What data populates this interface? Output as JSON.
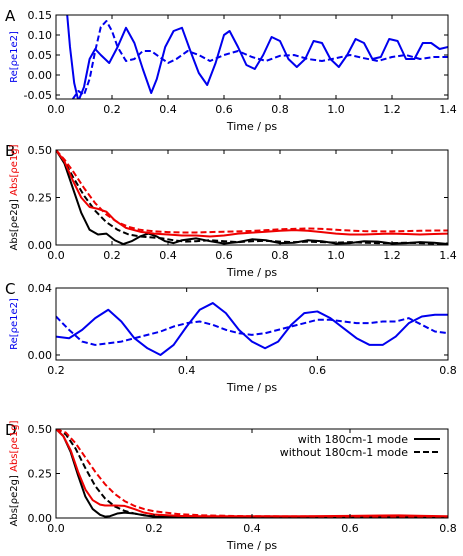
{
  "colors": {
    "blue": "#0000ee",
    "red": "#ee0000",
    "black": "#000000"
  },
  "chart_data": [
    {
      "type": "line",
      "panel_label": "A",
      "xlabel": "Time / ps",
      "ylabel": "Re[ρe1e2]",
      "ylabel_color": "blue",
      "xlim": [
        0,
        1.4
      ],
      "ylim": [
        -0.06,
        0.15
      ],
      "xticks": [
        0.0,
        0.2,
        0.4,
        0.6,
        0.8,
        1.0,
        1.2,
        1.4
      ],
      "xtick_labels": [
        "0.0",
        "0.2",
        "0.4",
        "0.6",
        "0.8",
        "1.0",
        "1.2",
        "1.4"
      ],
      "yticks": [
        -0.05,
        0.0,
        0.05,
        0.1,
        0.15
      ],
      "ytick_labels": [
        "-0.05",
        "0.00",
        "0.05",
        "0.10",
        "0.15"
      ],
      "series": [
        {
          "style": "solid",
          "color": "blue",
          "x": [
            0.04,
            0.05,
            0.065,
            0.08,
            0.1,
            0.12,
            0.14,
            0.16,
            0.19,
            0.22,
            0.25,
            0.28,
            0.31,
            0.34,
            0.36,
            0.39,
            0.42,
            0.45,
            0.48,
            0.51,
            0.54,
            0.57,
            0.6,
            0.62,
            0.65,
            0.68,
            0.71,
            0.74,
            0.77,
            0.8,
            0.83,
            0.86,
            0.89,
            0.92,
            0.95,
            0.98,
            1.01,
            1.04,
            1.07,
            1.1,
            1.13,
            1.16,
            1.19,
            1.22,
            1.25,
            1.28,
            1.31,
            1.34,
            1.37,
            1.4
          ],
          "y": [
            0.15,
            0.07,
            -0.02,
            -0.065,
            -0.03,
            0.04,
            0.065,
            0.05,
            0.03,
            0.07,
            0.118,
            0.08,
            0.015,
            -0.045,
            -0.01,
            0.07,
            0.11,
            0.118,
            0.06,
            0.005,
            -0.025,
            0.03,
            0.1,
            0.11,
            0.07,
            0.025,
            0.015,
            0.05,
            0.095,
            0.085,
            0.04,
            0.02,
            0.04,
            0.085,
            0.08,
            0.04,
            0.02,
            0.05,
            0.09,
            0.08,
            0.04,
            0.045,
            0.09,
            0.085,
            0.04,
            0.04,
            0.08,
            0.08,
            0.065,
            0.07
          ]
        },
        {
          "style": "dashed",
          "color": "blue",
          "x": [
            0.06,
            0.08,
            0.1,
            0.12,
            0.14,
            0.16,
            0.18,
            0.2,
            0.22,
            0.25,
            0.28,
            0.31,
            0.34,
            0.37,
            0.4,
            0.43,
            0.47,
            0.51,
            0.55,
            0.6,
            0.65,
            0.7,
            0.75,
            0.8,
            0.85,
            0.9,
            0.95,
            1.0,
            1.05,
            1.1,
            1.15,
            1.2,
            1.25,
            1.3,
            1.35,
            1.4
          ],
          "y": [
            -0.06,
            -0.04,
            -0.05,
            -0.01,
            0.06,
            0.12,
            0.135,
            0.11,
            0.07,
            0.035,
            0.04,
            0.06,
            0.06,
            0.045,
            0.03,
            0.04,
            0.06,
            0.05,
            0.035,
            0.05,
            0.06,
            0.045,
            0.035,
            0.048,
            0.05,
            0.04,
            0.035,
            0.042,
            0.05,
            0.042,
            0.035,
            0.045,
            0.05,
            0.04,
            0.045,
            0.045
          ]
        }
      ]
    },
    {
      "type": "line",
      "panel_label": "B",
      "xlabel": "Time / ps",
      "ylabel_parts": [
        {
          "text": "Abs[ρe2g]",
          "color": "black"
        },
        {
          "text": "Abs[ρe1g]",
          "color": "red"
        }
      ],
      "xlim": [
        0,
        1.4
      ],
      "ylim": [
        0,
        0.5
      ],
      "xticks": [
        0.0,
        0.2,
        0.4,
        0.6,
        0.8,
        1.0,
        1.2,
        1.4
      ],
      "xtick_labels": [
        "0.0",
        "0.2",
        "0.4",
        "0.6",
        "0.8",
        "1.0",
        "1.2",
        "1.4"
      ],
      "yticks": [
        0.0,
        0.25,
        0.5
      ],
      "ytick_labels": [
        "0.00",
        "0.25",
        "0.50"
      ],
      "series": [
        {
          "style": "solid",
          "color": "black",
          "x": [
            0.0,
            0.03,
            0.06,
            0.09,
            0.12,
            0.15,
            0.18,
            0.21,
            0.24,
            0.27,
            0.3,
            0.33,
            0.36,
            0.39,
            0.42,
            0.45,
            0.5,
            0.55,
            0.6,
            0.65,
            0.7,
            0.75,
            0.8,
            0.85,
            0.9,
            0.95,
            1.0,
            1.05,
            1.1,
            1.15,
            1.2,
            1.25,
            1.3,
            1.35,
            1.4
          ],
          "y": [
            0.5,
            0.43,
            0.3,
            0.17,
            0.08,
            0.055,
            0.06,
            0.025,
            0.005,
            0.02,
            0.045,
            0.06,
            0.045,
            0.02,
            0.01,
            0.025,
            0.035,
            0.02,
            0.008,
            0.015,
            0.03,
            0.025,
            0.01,
            0.012,
            0.025,
            0.02,
            0.008,
            0.01,
            0.02,
            0.018,
            0.008,
            0.01,
            0.015,
            0.012,
            0.005
          ]
        },
        {
          "style": "dashed",
          "color": "black",
          "x": [
            0.0,
            0.03,
            0.06,
            0.1,
            0.14,
            0.18,
            0.22,
            0.26,
            0.3,
            0.34,
            0.38,
            0.42,
            0.46,
            0.5,
            0.55,
            0.6,
            0.65,
            0.7,
            0.75,
            0.8,
            0.85,
            0.9,
            0.95,
            1.0,
            1.05,
            1.1,
            1.15,
            1.2,
            1.25,
            1.3,
            1.35,
            1.4
          ],
          "y": [
            0.5,
            0.44,
            0.36,
            0.26,
            0.18,
            0.12,
            0.08,
            0.055,
            0.045,
            0.04,
            0.035,
            0.025,
            0.018,
            0.02,
            0.025,
            0.02,
            0.015,
            0.02,
            0.022,
            0.018,
            0.015,
            0.018,
            0.015,
            0.012,
            0.015,
            0.012,
            0.01,
            0.01,
            0.012,
            0.01,
            0.008,
            0.008
          ]
        },
        {
          "style": "solid",
          "color": "red",
          "x": [
            0.0,
            0.03,
            0.06,
            0.09,
            0.12,
            0.15,
            0.18,
            0.21,
            0.25,
            0.3,
            0.35,
            0.4,
            0.45,
            0.5,
            0.55,
            0.6,
            0.65,
            0.7,
            0.75,
            0.8,
            0.85,
            0.9,
            0.95,
            1.0,
            1.05,
            1.1,
            1.15,
            1.2,
            1.25,
            1.3,
            1.35,
            1.4
          ],
          "y": [
            0.5,
            0.44,
            0.34,
            0.25,
            0.2,
            0.19,
            0.175,
            0.13,
            0.09,
            0.07,
            0.06,
            0.055,
            0.05,
            0.05,
            0.045,
            0.05,
            0.06,
            0.065,
            0.07,
            0.075,
            0.078,
            0.075,
            0.068,
            0.06,
            0.055,
            0.055,
            0.058,
            0.06,
            0.058,
            0.055,
            0.058,
            0.06
          ]
        },
        {
          "style": "dashed",
          "color": "red",
          "x": [
            0.0,
            0.03,
            0.06,
            0.1,
            0.14,
            0.18,
            0.22,
            0.26,
            0.3,
            0.35,
            0.4,
            0.45,
            0.5,
            0.55,
            0.6,
            0.65,
            0.7,
            0.75,
            0.8,
            0.85,
            0.9,
            0.95,
            1.0,
            1.05,
            1.1,
            1.15,
            1.2,
            1.25,
            1.3,
            1.35,
            1.4
          ],
          "y": [
            0.5,
            0.45,
            0.39,
            0.3,
            0.22,
            0.16,
            0.12,
            0.095,
            0.08,
            0.072,
            0.068,
            0.066,
            0.066,
            0.068,
            0.07,
            0.072,
            0.074,
            0.078,
            0.083,
            0.085,
            0.087,
            0.085,
            0.08,
            0.076,
            0.073,
            0.072,
            0.072,
            0.073,
            0.075,
            0.076,
            0.076
          ]
        }
      ]
    },
    {
      "type": "line",
      "panel_label": "C",
      "xlabel": "Time / ps",
      "ylabel": "Re[ρe1e2]",
      "ylabel_color": "blue",
      "xlim": [
        0.2,
        0.8
      ],
      "ylim": [
        -0.003,
        0.04
      ],
      "xticks": [
        0.2,
        0.4,
        0.6,
        0.8
      ],
      "xtick_labels": [
        "0.2",
        "0.4",
        "0.6",
        "0.8"
      ],
      "yticks": [
        0.0,
        0.04
      ],
      "ytick_labels": [
        "0.00",
        "0.04"
      ],
      "series": [
        {
          "style": "solid",
          "color": "blue",
          "x": [
            0.2,
            0.22,
            0.24,
            0.26,
            0.28,
            0.3,
            0.32,
            0.34,
            0.36,
            0.38,
            0.4,
            0.42,
            0.44,
            0.46,
            0.48,
            0.5,
            0.52,
            0.54,
            0.56,
            0.58,
            0.6,
            0.62,
            0.64,
            0.66,
            0.68,
            0.7,
            0.72,
            0.74,
            0.76,
            0.78,
            0.8
          ],
          "y": [
            0.011,
            0.01,
            0.015,
            0.022,
            0.027,
            0.02,
            0.01,
            0.004,
            0.0,
            0.006,
            0.017,
            0.027,
            0.031,
            0.025,
            0.015,
            0.008,
            0.004,
            0.008,
            0.018,
            0.025,
            0.026,
            0.022,
            0.016,
            0.01,
            0.006,
            0.006,
            0.011,
            0.019,
            0.023,
            0.024,
            0.024
          ]
        },
        {
          "style": "dashed",
          "color": "blue",
          "x": [
            0.2,
            0.22,
            0.24,
            0.26,
            0.28,
            0.3,
            0.32,
            0.34,
            0.36,
            0.38,
            0.4,
            0.42,
            0.44,
            0.46,
            0.48,
            0.5,
            0.52,
            0.54,
            0.56,
            0.58,
            0.6,
            0.62,
            0.64,
            0.66,
            0.68,
            0.7,
            0.72,
            0.74,
            0.76,
            0.78,
            0.8
          ],
          "y": [
            0.023,
            0.015,
            0.008,
            0.006,
            0.007,
            0.008,
            0.01,
            0.012,
            0.014,
            0.017,
            0.019,
            0.02,
            0.018,
            0.015,
            0.013,
            0.012,
            0.013,
            0.015,
            0.017,
            0.019,
            0.021,
            0.021,
            0.02,
            0.019,
            0.019,
            0.02,
            0.02,
            0.022,
            0.018,
            0.014,
            0.013
          ]
        }
      ]
    },
    {
      "type": "line",
      "panel_label": "D",
      "xlabel": "Time / ps",
      "ylabel_parts": [
        {
          "text": "Abs[ρe2g]",
          "color": "black"
        },
        {
          "text": "Abs[ρe1g]",
          "color": "red"
        }
      ],
      "xlim": [
        0,
        0.8
      ],
      "ylim": [
        0,
        0.5
      ],
      "xticks": [
        0.0,
        0.2,
        0.4,
        0.6,
        0.8
      ],
      "xtick_labels": [
        "0.0",
        "0.2",
        "0.4",
        "0.6",
        "0.8"
      ],
      "yticks": [
        0.0,
        0.25,
        0.5
      ],
      "ytick_labels": [
        "0.00",
        "0.25",
        "0.50"
      ],
      "legend": {
        "placement": "top-right",
        "entries": [
          {
            "label": "with 180cm-1 mode",
            "style": "solid"
          },
          {
            "label": "without 180cm-1 mode",
            "style": "dashed"
          }
        ]
      },
      "series": [
        {
          "style": "solid",
          "color": "black",
          "x": [
            0.0,
            0.015,
            0.03,
            0.045,
            0.06,
            0.075,
            0.09,
            0.1,
            0.11,
            0.125,
            0.14,
            0.16,
            0.18,
            0.2,
            0.25,
            0.3,
            0.35,
            0.4,
            0.5,
            0.6,
            0.7,
            0.8
          ],
          "y": [
            0.5,
            0.46,
            0.37,
            0.24,
            0.12,
            0.05,
            0.018,
            0.008,
            0.01,
            0.025,
            0.03,
            0.025,
            0.015,
            0.008,
            0.005,
            0.004,
            0.004,
            0.004,
            0.004,
            0.004,
            0.004,
            0.004
          ]
        },
        {
          "style": "dashed",
          "color": "black",
          "x": [
            0.0,
            0.02,
            0.04,
            0.06,
            0.08,
            0.1,
            0.12,
            0.14,
            0.16,
            0.18,
            0.2,
            0.25,
            0.3,
            0.4,
            0.5,
            0.6,
            0.7,
            0.8
          ],
          "y": [
            0.5,
            0.47,
            0.39,
            0.28,
            0.18,
            0.11,
            0.065,
            0.04,
            0.025,
            0.016,
            0.01,
            0.006,
            0.004,
            0.004,
            0.004,
            0.004,
            0.004,
            0.004
          ]
        },
        {
          "style": "solid",
          "color": "red",
          "x": [
            0.0,
            0.015,
            0.03,
            0.045,
            0.06,
            0.075,
            0.09,
            0.1,
            0.12,
            0.14,
            0.16,
            0.18,
            0.2,
            0.25,
            0.3,
            0.4,
            0.5,
            0.6,
            0.7,
            0.75,
            0.8
          ],
          "y": [
            0.5,
            0.46,
            0.38,
            0.26,
            0.16,
            0.1,
            0.075,
            0.07,
            0.07,
            0.068,
            0.05,
            0.03,
            0.02,
            0.012,
            0.01,
            0.01,
            0.01,
            0.012,
            0.015,
            0.012,
            0.01
          ]
        },
        {
          "style": "dashed",
          "color": "red",
          "x": [
            0.0,
            0.02,
            0.04,
            0.06,
            0.08,
            0.1,
            0.12,
            0.14,
            0.16,
            0.18,
            0.2,
            0.25,
            0.3,
            0.35,
            0.4,
            0.5,
            0.6,
            0.7,
            0.8
          ],
          "y": [
            0.5,
            0.48,
            0.42,
            0.34,
            0.26,
            0.19,
            0.135,
            0.095,
            0.068,
            0.05,
            0.038,
            0.022,
            0.015,
            0.012,
            0.01,
            0.009,
            0.008,
            0.008,
            0.008
          ]
        }
      ]
    }
  ]
}
